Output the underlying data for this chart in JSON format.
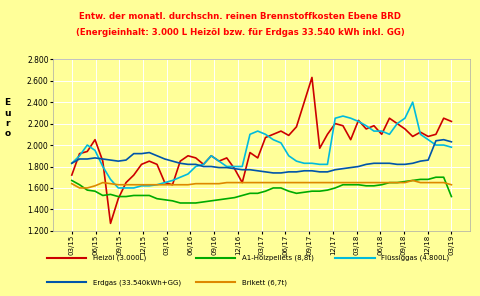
{
  "title_line1": "Entw. der monatl. durchschn. reinen Brennstoffkosten Ebene BRD",
  "title_line2": "(Energieinhalt: 3.000 L Heizöl bzw. für Erdgas 33.540 kWh inkl. GG)",
  "ylabel": "E\nu\nr\no",
  "background_color": "#ffff99",
  "ylim": [
    1.2,
    2.8
  ],
  "yticks": [
    1.2,
    1.4,
    1.6,
    1.8,
    2.0,
    2.2,
    2.4,
    2.6,
    2.8
  ],
  "x_labels": [
    "03/15",
    "06/15",
    "09/15",
    "12/15",
    "03/16",
    "06/16",
    "09/16",
    "12/16",
    "03/17",
    "06/17",
    "09/17",
    "12/17",
    "03/18",
    "06/18",
    "09/18",
    "12/18",
    "03/19"
  ],
  "series": {
    "Heizöl (3.000L)": {
      "color": "#cc0000",
      "linewidth": 1.2,
      "values": [
        1.72,
        1.92,
        1.94,
        2.05,
        1.85,
        1.27,
        1.5,
        1.65,
        1.72,
        1.82,
        1.85,
        1.82,
        1.65,
        1.63,
        1.85,
        1.9,
        1.88,
        1.82,
        1.9,
        1.85,
        1.88,
        1.78,
        1.65,
        1.93,
        1.88,
        2.07,
        2.1,
        2.13,
        2.09,
        2.17,
        2.4,
        2.63,
        1.97,
        2.1,
        2.2,
        2.18,
        2.05,
        2.23,
        2.15,
        2.18,
        2.1,
        2.25,
        2.2,
        2.15,
        2.08,
        2.12,
        2.08,
        2.1,
        2.25,
        2.22
      ]
    },
    "A1-Holzpellets (8,8t)": {
      "color": "#00aa00",
      "linewidth": 1.2,
      "values": [
        1.67,
        1.63,
        1.58,
        1.57,
        1.53,
        1.54,
        1.52,
        1.52,
        1.53,
        1.53,
        1.53,
        1.5,
        1.49,
        1.48,
        1.46,
        1.46,
        1.46,
        1.47,
        1.48,
        1.49,
        1.5,
        1.51,
        1.53,
        1.55,
        1.55,
        1.57,
        1.6,
        1.6,
        1.57,
        1.55,
        1.56,
        1.57,
        1.57,
        1.58,
        1.6,
        1.63,
        1.63,
        1.63,
        1.62,
        1.62,
        1.63,
        1.65,
        1.65,
        1.66,
        1.67,
        1.68,
        1.68,
        1.7,
        1.7,
        1.52
      ]
    },
    "Flüssiggas (4.800L)": {
      "color": "#00bbdd",
      "linewidth": 1.2,
      "values": [
        1.83,
        1.9,
        2.0,
        1.95,
        1.8,
        1.68,
        1.6,
        1.6,
        1.6,
        1.62,
        1.62,
        1.63,
        1.65,
        1.67,
        1.7,
        1.73,
        1.8,
        1.82,
        1.9,
        1.85,
        1.8,
        1.8,
        1.8,
        2.1,
        2.13,
        2.1,
        2.05,
        2.02,
        1.9,
        1.85,
        1.83,
        1.83,
        1.82,
        1.82,
        2.25,
        2.27,
        2.25,
        2.22,
        2.18,
        2.13,
        2.13,
        2.1,
        2.2,
        2.25,
        2.4,
        2.1,
        2.05,
        2.0,
        2.0,
        1.98
      ]
    },
    "Erdgas (33.540kWh+GG)": {
      "color": "#0055aa",
      "linewidth": 1.2,
      "values": [
        1.83,
        1.87,
        1.87,
        1.88,
        1.87,
        1.86,
        1.85,
        1.86,
        1.92,
        1.92,
        1.93,
        1.9,
        1.87,
        1.85,
        1.83,
        1.82,
        1.82,
        1.8,
        1.8,
        1.79,
        1.79,
        1.78,
        1.77,
        1.77,
        1.76,
        1.75,
        1.74,
        1.74,
        1.75,
        1.75,
        1.76,
        1.76,
        1.75,
        1.75,
        1.77,
        1.78,
        1.79,
        1.8,
        1.82,
        1.83,
        1.83,
        1.83,
        1.82,
        1.82,
        1.83,
        1.85,
        1.86,
        2.04,
        2.05,
        2.03
      ]
    },
    "Brikett (6,7t)": {
      "color": "#dd8800",
      "linewidth": 1.2,
      "values": [
        1.64,
        1.6,
        1.6,
        1.62,
        1.65,
        1.64,
        1.63,
        1.63,
        1.63,
        1.63,
        1.63,
        1.63,
        1.63,
        1.63,
        1.63,
        1.63,
        1.64,
        1.64,
        1.64,
        1.64,
        1.65,
        1.65,
        1.65,
        1.65,
        1.65,
        1.65,
        1.65,
        1.65,
        1.65,
        1.65,
        1.65,
        1.65,
        1.65,
        1.65,
        1.65,
        1.65,
        1.65,
        1.65,
        1.65,
        1.65,
        1.65,
        1.65,
        1.65,
        1.65,
        1.67,
        1.65,
        1.65,
        1.65,
        1.65,
        1.63
      ]
    }
  },
  "legend_row1": [
    {
      "label": "Heizöl (3.000L)",
      "color": "#cc0000"
    },
    {
      "label": "A1-Holzpellets (8,8t)",
      "color": "#00aa00"
    },
    {
      "label": "Flüssiggas (4.800L)",
      "color": "#00bbdd"
    }
  ],
  "legend_row2": [
    {
      "label": "Erdgas (33.540kWh+GG)",
      "color": "#0055aa"
    },
    {
      "label": "Brikett (6,7t)",
      "color": "#dd8800"
    }
  ]
}
